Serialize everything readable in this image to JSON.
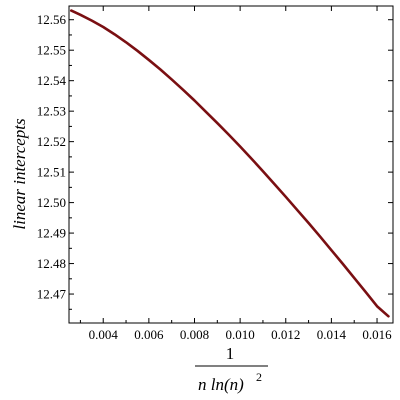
{
  "chart_data": {
    "type": "line",
    "title": "",
    "xlabel": {
      "numerator": "1",
      "denominator_main": "n ln(n)",
      "denominator_exponent": "2"
    },
    "ylabel": "linear intercepts",
    "xlim": [
      0.0025,
      0.0167
    ],
    "ylim": [
      12.4605,
      12.5645
    ],
    "x_ticks": [
      0.004,
      0.006,
      0.008,
      0.01,
      0.012,
      0.014,
      0.016
    ],
    "x_tick_labels": [
      "0.004",
      "0.006",
      "0.008",
      "0.010",
      "0.012",
      "0.014",
      "0.016"
    ],
    "y_ticks": [
      12.47,
      12.48,
      12.49,
      12.5,
      12.51,
      12.52,
      12.53,
      12.54,
      12.55,
      12.56
    ],
    "y_tick_labels": [
      "12.47",
      "12.48",
      "12.49",
      "12.50",
      "12.51",
      "12.52",
      "12.53",
      "12.54",
      "12.55",
      "12.56"
    ],
    "grid": false,
    "line_color": "#7a0f12",
    "series": [
      {
        "x": [
          0.0026,
          0.003,
          0.0035,
          0.004,
          0.0045,
          0.005,
          0.0055,
          0.006,
          0.0065,
          0.007,
          0.0075,
          0.008,
          0.0085,
          0.009,
          0.0095,
          0.01,
          0.0105,
          0.011,
          0.0115,
          0.012,
          0.0125,
          0.013,
          0.0135,
          0.014,
          0.0145,
          0.015,
          0.0155,
          0.016,
          0.0165
        ],
        "y": [
          12.563,
          12.5616,
          12.5597,
          12.5576,
          12.5552,
          12.5526,
          12.5498,
          12.5468,
          12.5437,
          12.5404,
          12.537,
          12.5335,
          12.5298,
          12.5261,
          12.5223,
          12.5184,
          12.5144,
          12.5103,
          12.5061,
          12.5019,
          12.4976,
          12.4933,
          12.4889,
          12.4844,
          12.4799,
          12.4753,
          12.4707,
          12.466,
          12.4627
        ]
      }
    ]
  }
}
